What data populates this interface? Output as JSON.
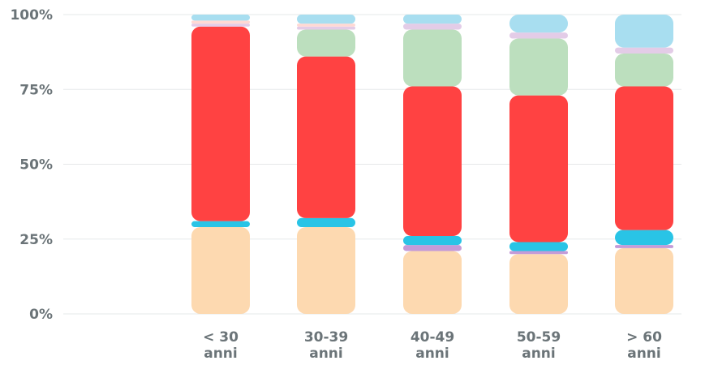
{
  "chart_data": {
    "type": "bar",
    "stacked": true,
    "normalized": true,
    "categories": [
      [
        "< 30",
        "anni"
      ],
      [
        "30-39",
        "anni"
      ],
      [
        "40-49",
        "anni"
      ],
      [
        "50-59",
        "anni"
      ],
      [
        "> 60",
        "anni"
      ]
    ],
    "y_ticks": [
      "0%",
      "25%",
      "50%",
      "75%",
      "100%"
    ],
    "ylim": [
      0,
      100
    ],
    "grid": true,
    "series": [
      {
        "color": "#fdd9b0",
        "values": [
          29,
          29,
          21,
          20,
          22
        ]
      },
      {
        "color": "#c49bd8",
        "values": [
          0,
          0,
          2,
          1,
          1
        ]
      },
      {
        "color": "#29c4e6",
        "values": [
          2,
          3,
          3,
          3,
          5
        ]
      },
      {
        "color": "#ff4242",
        "values": [
          65,
          54,
          50,
          49,
          48
        ]
      },
      {
        "color": "#bcdfbe",
        "values": [
          0,
          9,
          19,
          19,
          11
        ]
      },
      {
        "color": "#e3cce7",
        "values": [
          1,
          1,
          2,
          2,
          2
        ]
      },
      {
        "color": "#ffd9d4",
        "values": [
          1,
          1,
          0,
          0,
          0
        ]
      },
      {
        "color": "#a8def0",
        "values": [
          2,
          3,
          3,
          6,
          11
        ]
      }
    ]
  }
}
